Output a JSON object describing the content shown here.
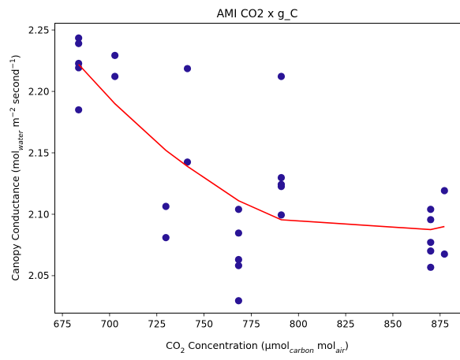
{
  "chart_data": {
    "type": "scatter",
    "title": "AMI CO2 x g_C",
    "xlabel": "CO₂ Concentration (µmol_carbon mol_air)",
    "ylabel": "Canopy Conductance (mol_water m⁻² second⁻¹)",
    "xlim": [
      671,
      887
    ],
    "ylim": [
      2.0195,
      2.2555
    ],
    "x_ticks": [
      675,
      700,
      725,
      750,
      775,
      800,
      825,
      850,
      875
    ],
    "y_ticks": [
      2.05,
      2.1,
      2.15,
      2.2,
      2.25
    ],
    "y_tick_labels": [
      "2.05",
      "2.10",
      "2.15",
      "2.20",
      "2.25"
    ],
    "grid": false,
    "series": [
      {
        "type": "scatter",
        "color": "#2a1496",
        "points": [
          {
            "x": 683.6,
            "y": 2.2435
          },
          {
            "x": 683.6,
            "y": 2.239
          },
          {
            "x": 683.6,
            "y": 2.2228
          },
          {
            "x": 683.6,
            "y": 2.2193
          },
          {
            "x": 683.6,
            "y": 2.185
          },
          {
            "x": 702.8,
            "y": 2.2293
          },
          {
            "x": 702.8,
            "y": 2.2122
          },
          {
            "x": 729.8,
            "y": 2.1064
          },
          {
            "x": 729.8,
            "y": 2.081
          },
          {
            "x": 741.2,
            "y": 2.2186
          },
          {
            "x": 741.2,
            "y": 2.1425
          },
          {
            "x": 768.3,
            "y": 2.104
          },
          {
            "x": 768.3,
            "y": 2.0847
          },
          {
            "x": 768.3,
            "y": 2.0631
          },
          {
            "x": 768.3,
            "y": 2.0582
          },
          {
            "x": 768.3,
            "y": 2.0296
          },
          {
            "x": 790.9,
            "y": 2.2122
          },
          {
            "x": 790.9,
            "y": 2.1298
          },
          {
            "x": 790.9,
            "y": 2.1243
          },
          {
            "x": 790.9,
            "y": 2.1226
          },
          {
            "x": 790.9,
            "y": 2.0994
          },
          {
            "x": 870.0,
            "y": 2.104
          },
          {
            "x": 870.0,
            "y": 2.0956
          },
          {
            "x": 870.0,
            "y": 2.0771
          },
          {
            "x": 870.0,
            "y": 2.0701
          },
          {
            "x": 870.0,
            "y": 2.0568
          },
          {
            "x": 877.3,
            "y": 2.1192
          },
          {
            "x": 877.3,
            "y": 2.0676
          }
        ]
      },
      {
        "type": "line",
        "color": "#ff0000",
        "points": [
          {
            "x": 683.6,
            "y": 2.222
          },
          {
            "x": 702.8,
            "y": 2.19
          },
          {
            "x": 729.8,
            "y": 2.152
          },
          {
            "x": 741.2,
            "y": 2.139
          },
          {
            "x": 768.3,
            "y": 2.111
          },
          {
            "x": 790.9,
            "y": 2.0955
          },
          {
            "x": 870.0,
            "y": 2.0875
          },
          {
            "x": 877.3,
            "y": 2.09
          }
        ]
      }
    ]
  }
}
